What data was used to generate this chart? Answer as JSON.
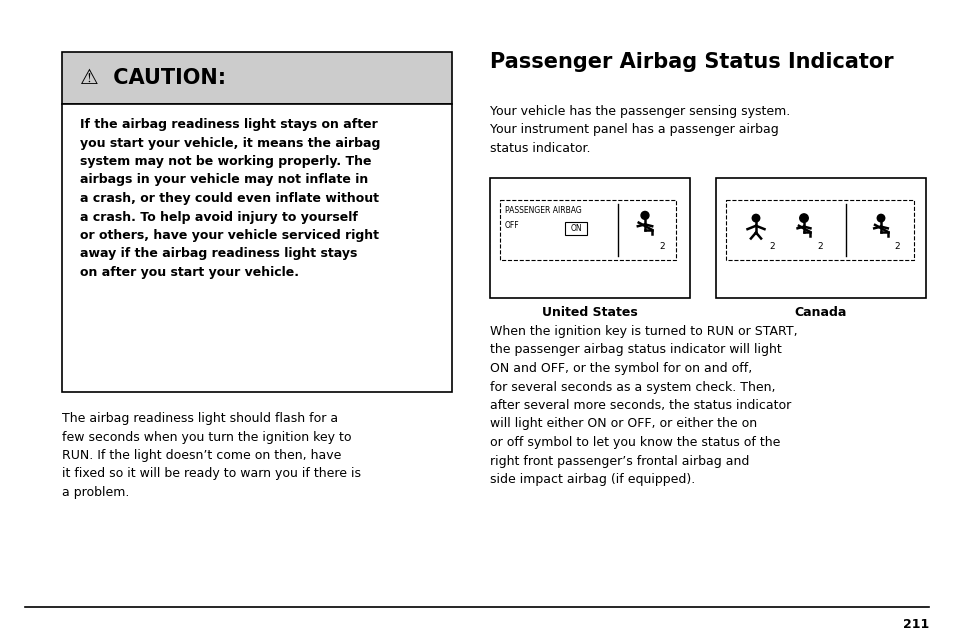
{
  "bg_color": "#ffffff",
  "page_number": "211",
  "title": "Passenger Airbag Status Indicator",
  "title_fontsize": 15,
  "caution_header_bg": "#cccccc",
  "caution_body": "If the airbag readiness light stays on after\nyou start your vehicle, it means the airbag\nsystem may not be working properly. The\nairbags in your vehicle may not inflate in\na crash, or they could even inflate without\na crash. To help avoid injury to yourself\nor others, have your vehicle serviced right\naway if the airbag readiness light stays\non after you start your vehicle.",
  "paragraph1": "The airbag readiness light should flash for a\nfew seconds when you turn the ignition key to\nRUN. If the light doesn’t come on then, have\nit fixed so it will be ready to warn you if there is\na problem.",
  "intro_text": "Your vehicle has the passenger sensing system.\nYour instrument panel has a passenger airbag\nstatus indicator.",
  "us_label": "United States",
  "canada_label": "Canada",
  "right_paragraph": "When the ignition key is turned to RUN or START,\nthe passenger airbag status indicator will light\nON and OFF, or the symbol for on and off,\nfor several seconds as a system check. Then,\nafter several more seconds, the status indicator\nwill light either ON or OFF, or either the on\nor off symbol to let you know the status of the\nright front passenger’s frontal airbag and\nside impact airbag (if equipped).",
  "font_color": "#000000",
  "border_color": "#000000"
}
